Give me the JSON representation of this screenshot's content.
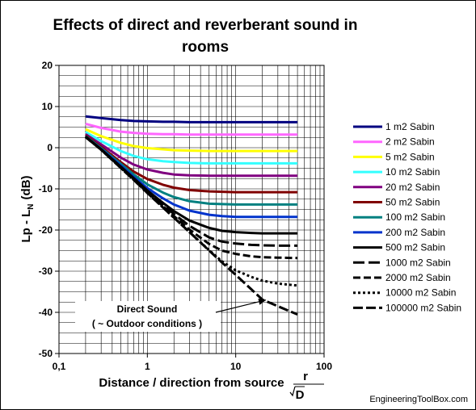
{
  "chart_data": {
    "type": "line",
    "title_line1": "Effects of direct and reverberant sound in",
    "title_line2": "rooms",
    "xlabel": "Distance / direction from source",
    "xlabel_fraction": {
      "numerator": "r",
      "denominator": "D"
    },
    "ylabel": "Lp - L",
    "ylabel_subscript": "N",
    "ylabel_unit": "(dB)",
    "x_scale": "log",
    "xlim": [
      0.1,
      100
    ],
    "ylim": [
      -50,
      20
    ],
    "x_ticks": [
      {
        "value": 0.1,
        "label": "0,1"
      },
      {
        "value": 1,
        "label": "1"
      },
      {
        "value": 10,
        "label": "10"
      },
      {
        "value": 100,
        "label": "100"
      }
    ],
    "y_ticks": [
      20,
      10,
      0,
      -10,
      -20,
      -30,
      -40,
      -50
    ],
    "grid": true,
    "legend_position": "right",
    "x": [
      0.2,
      0.3,
      0.5,
      0.7,
      1,
      1.5,
      2,
      3,
      5,
      7,
      10,
      15,
      20,
      30,
      50
    ],
    "series": [
      {
        "name": "1 m2 Sabin",
        "color": "#000080",
        "dash": "solid",
        "values": [
          7.6,
          7.2,
          6.7,
          6.5,
          6.4,
          6.3,
          6.3,
          6.2,
          6.2,
          6.2,
          6.2,
          6.2,
          6.2,
          6.2,
          6.2
        ]
      },
      {
        "name": "2 m2 Sabin",
        "color": "#ff66ff",
        "dash": "solid",
        "values": [
          5.8,
          4.8,
          3.9,
          3.6,
          3.4,
          3.3,
          3.3,
          3.2,
          3.2,
          3.2,
          3.2,
          3.2,
          3.2,
          3.2,
          3.2
        ]
      },
      {
        "name": "5 m2 Sabin",
        "color": "#ffff00",
        "dash": "solid",
        "values": [
          4.5,
          2.8,
          1.2,
          0.4,
          -0.1,
          -0.4,
          -0.6,
          -0.7,
          -0.8,
          -0.8,
          -0.8,
          -0.8,
          -0.8,
          -0.8,
          -0.8
        ]
      },
      {
        "name": "10 m2 Sabin",
        "color": "#33ffff",
        "dash": "solid",
        "values": [
          3.8,
          1.6,
          -0.8,
          -2.0,
          -2.8,
          -3.3,
          -3.5,
          -3.7,
          -3.8,
          -3.8,
          -3.8,
          -3.8,
          -3.8,
          -3.8,
          -3.8
        ]
      },
      {
        "name": "20 m2 Sabin",
        "color": "#800080",
        "dash": "solid",
        "values": [
          3.3,
          0.8,
          -2.4,
          -4.1,
          -5.3,
          -6.1,
          -6.5,
          -6.7,
          -6.8,
          -6.8,
          -6.8,
          -6.8,
          -6.8,
          -6.8,
          -6.8
        ]
      },
      {
        "name": "50 m2 Sabin",
        "color": "#800000",
        "dash": "solid",
        "values": [
          3.0,
          0.2,
          -3.5,
          -5.8,
          -7.6,
          -9.0,
          -9.7,
          -10.3,
          -10.6,
          -10.7,
          -10.8,
          -10.8,
          -10.8,
          -10.8,
          -10.8
        ]
      },
      {
        "name": "100 m2 Sabin",
        "color": "#008080",
        "dash": "solid",
        "values": [
          2.8,
          -0.1,
          -3.9,
          -6.5,
          -8.9,
          -10.9,
          -12.0,
          -13.0,
          -13.6,
          -13.7,
          -13.8,
          -13.8,
          -13.8,
          -13.8,
          -13.8
        ]
      },
      {
        "name": "200 m2 Sabin",
        "color": "#0033cc",
        "dash": "solid",
        "values": [
          2.7,
          -0.3,
          -4.3,
          -7.1,
          -9.8,
          -12.3,
          -13.8,
          -15.3,
          -16.3,
          -16.6,
          -16.8,
          -16.8,
          -16.8,
          -16.8,
          -16.8
        ]
      },
      {
        "name": "500 m2 Sabin",
        "color": "#000000",
        "dash": "solid",
        "values": [
          2.7,
          -0.4,
          -4.6,
          -7.4,
          -10.4,
          -13.4,
          -15.4,
          -17.7,
          -19.5,
          -20.2,
          -20.5,
          -20.7,
          -20.8,
          -20.8,
          -20.8
        ]
      },
      {
        "name": "1000 m2 Sabin",
        "color": "#000000",
        "dash": "longdash",
        "values": [
          2.6,
          -0.4,
          -4.7,
          -7.6,
          -10.6,
          -13.9,
          -16.1,
          -19.0,
          -21.8,
          -22.8,
          -23.3,
          -23.6,
          -23.7,
          -23.8,
          -23.8
        ]
      },
      {
        "name": "2000 m2 Sabin",
        "color": "#000000",
        "dash": "dash",
        "values": [
          2.6,
          -0.5,
          -4.8,
          -7.7,
          -10.8,
          -14.2,
          -16.6,
          -19.9,
          -23.4,
          -25.0,
          -25.8,
          -26.4,
          -26.6,
          -26.7,
          -26.8
        ]
      },
      {
        "name": "10000 m2 Sabin",
        "color": "#000000",
        "dash": "dot",
        "values": [
          2.6,
          -0.5,
          -4.9,
          -7.8,
          -11.0,
          -14.5,
          -17.0,
          -20.5,
          -24.9,
          -27.6,
          -29.8,
          -31.4,
          -32.3,
          -33.0,
          -33.5
        ]
      },
      {
        "name": "100000 m2 Sabin",
        "color": "#000000",
        "dash": "dashdot",
        "values": [
          2.6,
          -0.5,
          -4.9,
          -7.8,
          -11.0,
          -14.5,
          -17.0,
          -20.5,
          -25.0,
          -27.9,
          -30.9,
          -34.4,
          -36.9,
          -38.5,
          -40.5
        ]
      }
    ],
    "annotation": {
      "line1": "Direct Sound",
      "line2": "( ~ Outdoor conditions )",
      "arrow_to": {
        "x": 22,
        "y": -37
      }
    }
  },
  "credit": "EngineeringToolBox.com"
}
